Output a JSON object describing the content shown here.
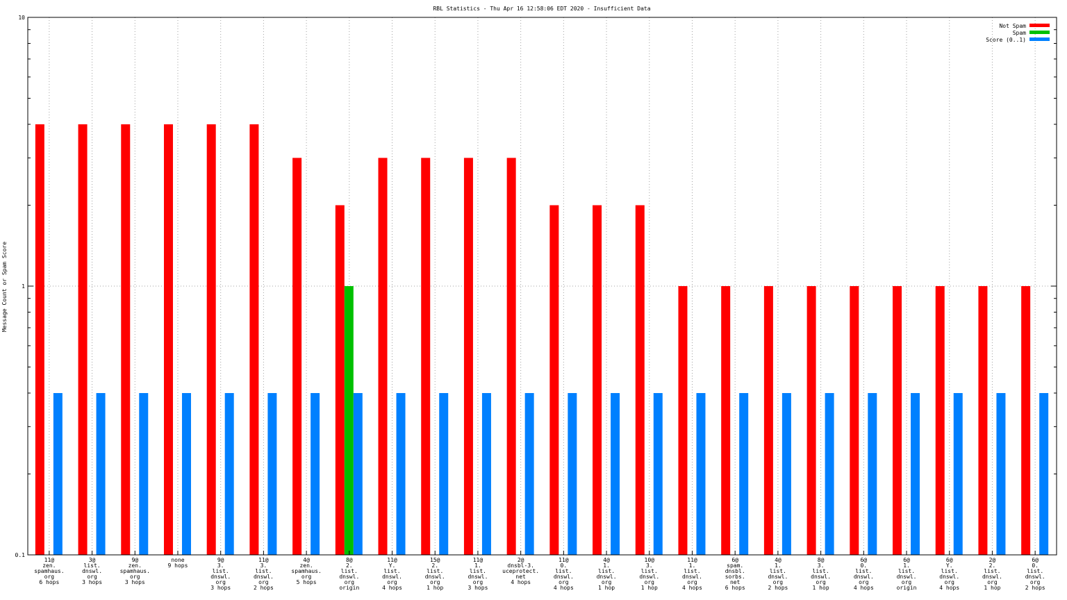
{
  "colors": {
    "not_spam": "#ff0000",
    "spam": "#00c000",
    "score": "#0080ff",
    "grid": "#a0a0a0",
    "axis": "#000000"
  },
  "chart_data": {
    "type": "bar",
    "title": "RBL Statistics - Thu Apr 16 12:58:06 EDT 2020 - Insufficient Data",
    "xlabel": "",
    "ylabel": "Message Count or Spam Score",
    "y_scale": "log",
    "ylim": [
      0.1,
      10
    ],
    "y_ticks": [
      "10",
      "1",
      "0.1"
    ],
    "grid": true,
    "legend_position": "top-right",
    "categories": [
      [
        "11@",
        "zen.",
        "spamhaus.",
        "org",
        "6 hops"
      ],
      [
        "3@",
        "list.",
        "dnswl.",
        "org",
        "3 hops"
      ],
      [
        "9@",
        "zen.",
        "spamhaus.",
        "org",
        "3 hops"
      ],
      [
        "none",
        "9 hops"
      ],
      [
        "9@",
        "3.",
        "list.",
        "dnswl.",
        "org",
        "3 hops"
      ],
      [
        "11@",
        "3.",
        "list.",
        "dnswl.",
        "org",
        "2 hops"
      ],
      [
        "4@",
        "zen.",
        "spamhaus.",
        "org",
        "5 hops"
      ],
      [
        "8@",
        "2.",
        "list.",
        "dnswl.",
        "org",
        "origin"
      ],
      [
        "11@",
        "Y.",
        "list.",
        "dnswl.",
        "org",
        "4 hops"
      ],
      [
        "15@",
        "2.",
        "list.",
        "dnswl.",
        "org",
        "1 hop"
      ],
      [
        "11@",
        "1.",
        "list.",
        "dnswl.",
        "org",
        "3 hops"
      ],
      [
        "2@",
        "dnsbl-3.",
        "uceprotect.",
        "net",
        "4 hops"
      ],
      [
        "11@",
        "0.",
        "list.",
        "dnswl.",
        "org",
        "4 hops"
      ],
      [
        "4@",
        "1.",
        "list.",
        "dnswl.",
        "org",
        "1 hop"
      ],
      [
        "10@",
        "3.",
        "list.",
        "dnswl.",
        "org",
        "1 hop"
      ],
      [
        "11@",
        "1.",
        "list.",
        "dnswl.",
        "org",
        "4 hops"
      ],
      [
        "6@",
        "spam.",
        "dnsbl.",
        "sorbs.",
        "net",
        "6 hops"
      ],
      [
        "4@",
        "1.",
        "list.",
        "dnswl.",
        "org",
        "2 hops"
      ],
      [
        "8@",
        "3.",
        "list.",
        "dnswl.",
        "org",
        "1 hop"
      ],
      [
        "6@",
        "0.",
        "list.",
        "dnswl.",
        "org",
        "4 hops"
      ],
      [
        "6@",
        "1.",
        "list.",
        "dnswl.",
        "org",
        "origin"
      ],
      [
        "6@",
        "Y.",
        "list.",
        "dnswl.",
        "org",
        "4 hops"
      ],
      [
        "2@",
        "2.",
        "list.",
        "dnswl.",
        "org",
        "1 hop"
      ],
      [
        "6@",
        "0.",
        "list.",
        "dnswl.",
        "org",
        "2 hops"
      ]
    ],
    "series": [
      {
        "name": "Not Spam",
        "color": "#ff0000",
        "values": [
          4,
          4,
          4,
          4,
          4,
          4,
          3,
          2,
          3,
          3,
          3,
          3,
          2,
          2,
          2,
          1,
          1,
          1,
          1,
          1,
          1,
          1,
          1,
          1
        ]
      },
      {
        "name": "Spam",
        "color": "#00c000",
        "values": [
          null,
          null,
          null,
          null,
          null,
          null,
          null,
          1,
          null,
          null,
          null,
          null,
          null,
          null,
          null,
          null,
          null,
          null,
          null,
          null,
          null,
          null,
          null,
          null
        ]
      },
      {
        "name": "Score (0..1)",
        "color": "#0080ff",
        "values": [
          0.4,
          0.4,
          0.4,
          0.4,
          0.4,
          0.4,
          0.4,
          0.4,
          0.4,
          0.4,
          0.4,
          0.4,
          0.4,
          0.4,
          0.4,
          0.4,
          0.4,
          0.4,
          0.4,
          0.4,
          0.4,
          0.4,
          0.4,
          0.4
        ]
      }
    ]
  }
}
